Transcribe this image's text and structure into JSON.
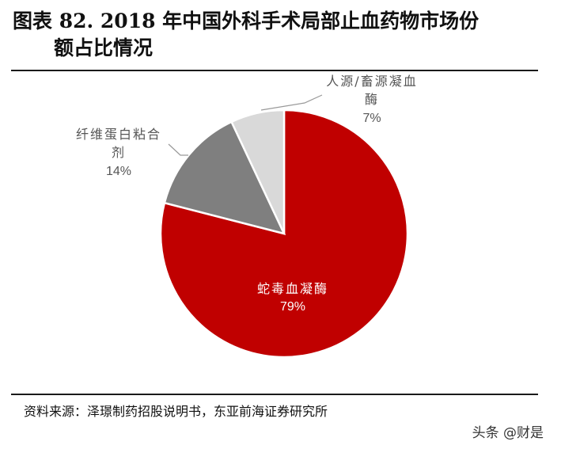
{
  "title": {
    "line1": "图表 82. 2018 年中国外科手术局部止血药物市场份",
    "line2": "额占比情况"
  },
  "source": "资料来源：泽璟制药招股说明书，东亚前海证券研究所",
  "watermark": "头条 @财是",
  "chart_data": {
    "type": "pie",
    "title": "图表 82. 2018 年中国外科手术局部止血药物市场份额占比情况",
    "slices": [
      {
        "label": "蛇毒血凝酶",
        "value": 79,
        "value_label": "79%",
        "color": "#c00000"
      },
      {
        "label": "纤维蛋白粘合剂",
        "value": 14,
        "value_label": "14%",
        "color": "#7f7f7f"
      },
      {
        "label": "人源/畜源凝血酶",
        "value": 7,
        "value_label": "7%",
        "color": "#d9d9d9"
      }
    ],
    "start": "12 o'clock",
    "direction": "clockwise",
    "label_lines": [
      [
        "蛇毒血凝酶"
      ],
      [
        "纤维蛋白粘合",
        "剂"
      ],
      [
        "人源/畜源凝血",
        "酶"
      ]
    ]
  }
}
